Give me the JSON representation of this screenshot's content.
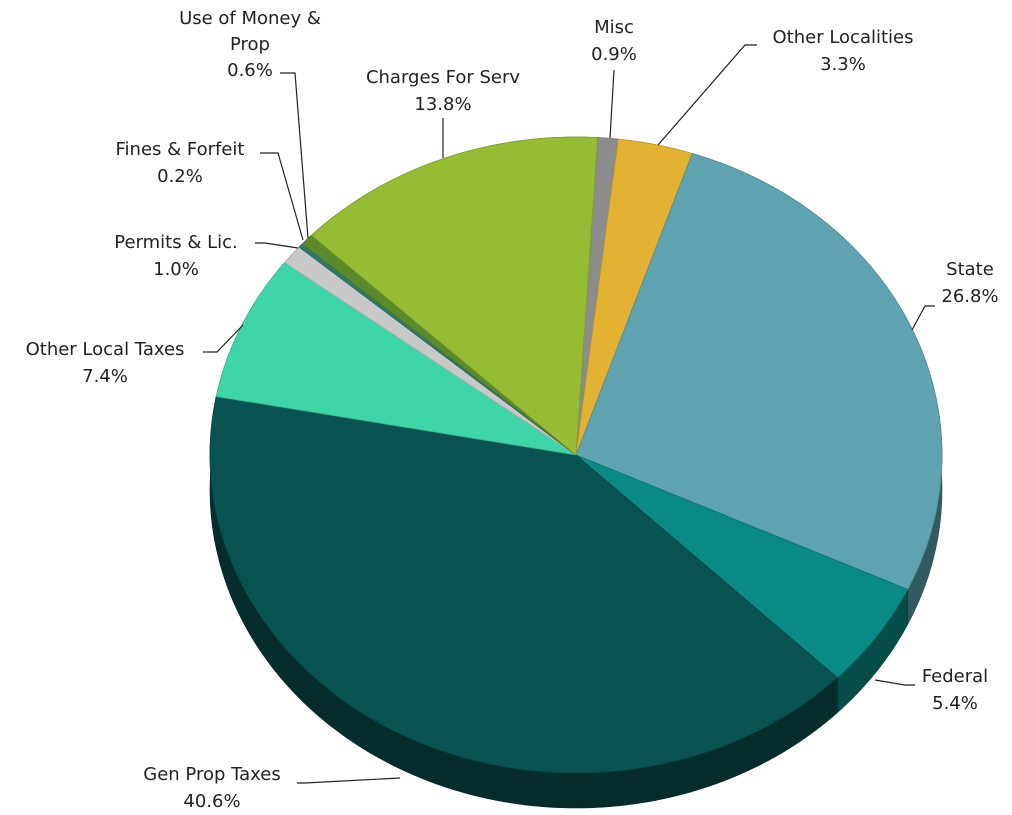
{
  "chart_data": {
    "type": "pie",
    "categories": [
      "Misc",
      "Other Localities",
      "State",
      "Federal",
      "Gen Prop Taxes",
      "Other Local Taxes",
      "Permits & Lic.",
      "Fines & Forfeit",
      "Use of Money & Prop",
      "Charges For Serv"
    ],
    "values": [
      0.9,
      3.3,
      26.8,
      5.4,
      40.6,
      7.4,
      1.0,
      0.2,
      0.6,
      13.8
    ],
    "value_labels": [
      "0.9%",
      "3.3%",
      "26.8%",
      "5.4%",
      "40.6%",
      "7.4%",
      "1.0%",
      "0.2%",
      "0.6%",
      "13.8%"
    ],
    "colors": [
      "#8c8c8c",
      "#e3b232",
      "#5fa3b0",
      "#0a8a85",
      "#08524f",
      "#3ed6a8",
      "#c8c8c8",
      "#2a7a70",
      "#5a8a2a",
      "#96bc33"
    ]
  }
}
